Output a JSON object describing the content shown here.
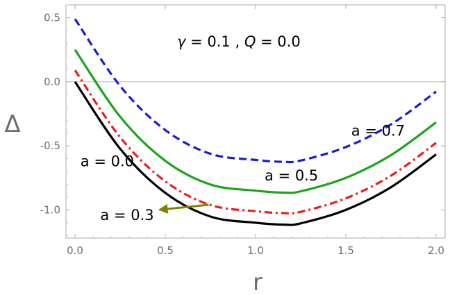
{
  "chart_data": {
    "type": "line",
    "title": "",
    "xlabel": "r",
    "ylabel": "Δ",
    "xlim": [
      -0.05,
      2.05
    ],
    "ylim": [
      -1.22,
      0.6
    ],
    "xticks": [
      "0.0",
      "0.5",
      "1.0",
      "1.5",
      "2.0"
    ],
    "xtick_values": [
      0,
      0.5,
      1.0,
      1.5,
      2.0
    ],
    "yticks": [
      "0.5",
      "0.0",
      "-0.5",
      "-1.0"
    ],
    "ytick_values": [
      0.5,
      0.0,
      -0.5,
      -1.0
    ],
    "grid": false,
    "parameters": {
      "gamma_symbol": "γ",
      "gamma_value": " = 0.1",
      "separator": " ,  ",
      "Q_symbol": "Q",
      "Q_value": " = 0.0"
    },
    "series": [
      {
        "name": "a = 0.0",
        "a": 0.0,
        "color": "#000000",
        "dash": "solid",
        "x": [
          0,
          0.25,
          0.5,
          0.75,
          1.0,
          1.155,
          1.25,
          1.5,
          1.75,
          2.0
        ],
        "y": [
          0.0,
          -0.523,
          -0.867,
          -1.052,
          -1.1,
          -1.115,
          -1.105,
          -1.0,
          -0.823,
          -0.567
        ]
      },
      {
        "name": "a = 0.3",
        "a": 0.3,
        "color": "#ee1c1c",
        "dash": "dashdot",
        "x": [
          0,
          0.25,
          0.5,
          0.75,
          1.0,
          1.155,
          1.25,
          1.5,
          1.75,
          2.0
        ],
        "y": [
          0.09,
          -0.433,
          -0.777,
          -0.962,
          -1.01,
          -1.025,
          -1.015,
          -0.91,
          -0.733,
          -0.477
        ]
      },
      {
        "name": "a = 0.5",
        "a": 0.5,
        "color": "#1ca51c",
        "dash": "solid",
        "x": [
          0,
          0.25,
          0.5,
          0.75,
          1.0,
          1.155,
          1.25,
          1.5,
          1.75,
          2.0
        ],
        "y": [
          0.25,
          -0.273,
          -0.617,
          -0.802,
          -0.85,
          -0.865,
          -0.855,
          -0.75,
          -0.573,
          -0.317
        ]
      },
      {
        "name": "a = 0.7",
        "a": 0.7,
        "color": "#1a1ad6",
        "dash": "dashed",
        "x": [
          0,
          0.25,
          0.5,
          0.75,
          1.0,
          1.155,
          1.25,
          1.5,
          1.75,
          2.0
        ],
        "y": [
          0.49,
          -0.033,
          -0.377,
          -0.562,
          -0.61,
          -0.625,
          -0.615,
          -0.51,
          -0.333,
          -0.077
        ]
      }
    ],
    "annotations": [
      {
        "text": "a = 0.7",
        "x": 1.53,
        "y": -0.42
      },
      {
        "text": "a = 0.5",
        "x": 1.05,
        "y": -0.77
      },
      {
        "text": "a = 0.0",
        "x": 0.03,
        "y": -0.66
      },
      {
        "text": "a = 0.3",
        "x": 0.14,
        "y": -1.08
      }
    ],
    "arrow": {
      "color": "#808000",
      "from": [
        0.74,
        -0.96
      ],
      "to": [
        0.46,
        -1.0
      ]
    }
  }
}
